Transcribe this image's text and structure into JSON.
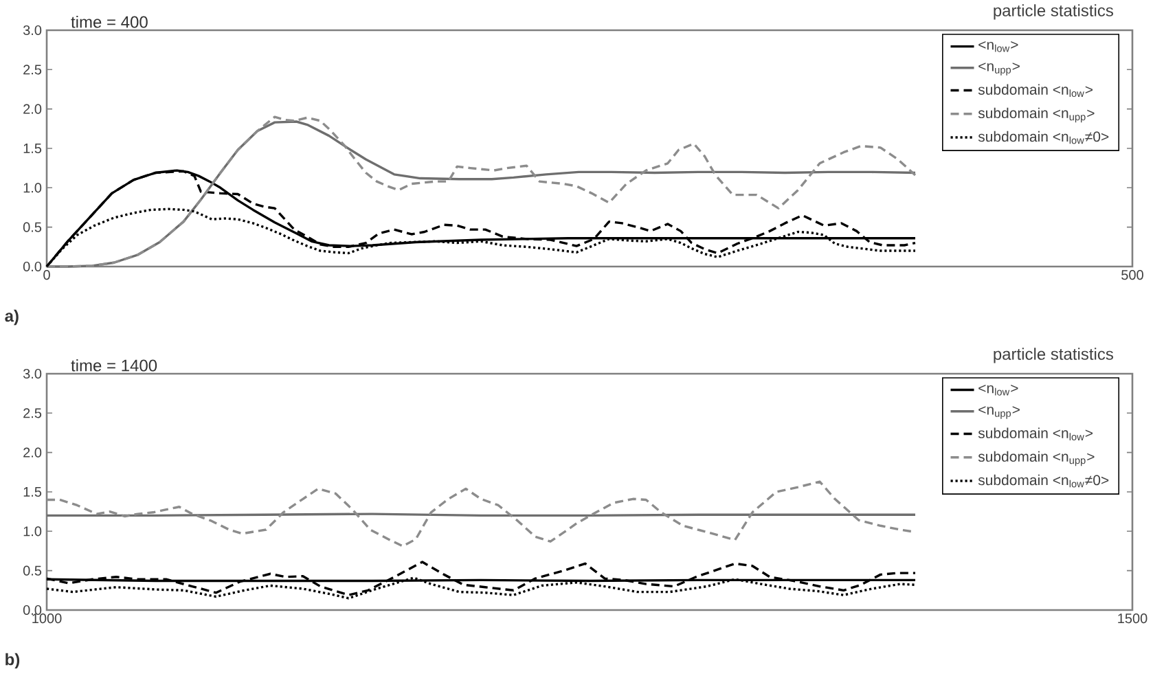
{
  "chart_data": [
    {
      "type": "line",
      "title": "particle statistics",
      "annotations": [
        "time = 400",
        "a)"
      ],
      "xlim": [
        0,
        500
      ],
      "xticks": [
        0,
        500
      ],
      "ylim": [
        0,
        3
      ],
      "yticks": [
        {
          "value": 0,
          "label": "0.0"
        },
        {
          "value": 0.5,
          "label": "0.5"
        },
        {
          "value": 1,
          "label": "1.0"
        },
        {
          "value": 1.5,
          "label": "1.5"
        },
        {
          "value": 2,
          "label": "2.0"
        },
        {
          "value": 2.5,
          "label": "2.5"
        },
        {
          "value": 3,
          "label": "3.0"
        }
      ],
      "legend": "top right",
      "series": [
        {
          "name": "<n$_{low}$>",
          "color": "#000000",
          "line_style": "solid",
          "x": [
            0,
            10,
            20,
            30,
            40,
            50,
            60,
            65,
            70,
            75,
            80,
            88,
            95,
            105,
            115,
            122,
            130,
            140,
            150,
            160,
            170,
            180,
            200,
            220,
            240,
            260,
            280,
            300,
            320,
            340,
            360,
            380,
            400
          ],
          "values": [
            0,
            0.33,
            0.63,
            0.93,
            1.1,
            1.19,
            1.22,
            1.2,
            1.15,
            1.08,
            1.0,
            0.84,
            0.72,
            0.56,
            0.42,
            0.32,
            0.27,
            0.26,
            0.27,
            0.29,
            0.31,
            0.32,
            0.34,
            0.35,
            0.36,
            0.36,
            0.36,
            0.36,
            0.36,
            0.36,
            0.36,
            0.36,
            0.36
          ]
        },
        {
          "name": "<n$_{upp}$>",
          "color": "#6e6e6e",
          "line_style": "solid",
          "x": [
            0,
            10,
            21,
            31,
            42,
            52,
            63,
            71,
            80,
            88,
            97,
            105,
            115,
            120,
            130,
            140,
            147,
            160,
            172,
            190,
            205,
            215,
            230,
            245,
            260,
            280,
            300,
            320,
            340,
            360,
            380,
            400
          ],
          "values": [
            0,
            0,
            0.01,
            0.05,
            0.15,
            0.31,
            0.57,
            0.85,
            1.19,
            1.48,
            1.72,
            1.83,
            1.84,
            1.8,
            1.66,
            1.48,
            1.36,
            1.17,
            1.12,
            1.11,
            1.11,
            1.13,
            1.17,
            1.2,
            1.2,
            1.19,
            1.2,
            1.2,
            1.19,
            1.2,
            1.2,
            1.19
          ]
        },
        {
          "name": "subdomain <n$_{low}$>",
          "color": "#000000",
          "line_style": "dashed",
          "x": [
            0,
            10,
            20,
            30,
            40,
            50,
            57,
            63,
            68,
            71,
            80,
            88,
            95,
            100,
            105,
            114,
            120,
            126,
            132,
            139,
            147,
            153,
            160,
            168,
            174,
            183,
            189,
            195,
            202,
            210,
            221,
            232,
            244,
            252,
            259,
            265,
            272,
            278,
            286,
            292,
            297,
            303,
            309,
            318,
            326,
            333,
            340,
            348,
            358,
            366,
            373,
            379,
            385,
            390,
            395,
            400
          ],
          "values": [
            0,
            0.33,
            0.63,
            0.93,
            1.1,
            1.19,
            1.2,
            1.21,
            1.15,
            0.95,
            0.93,
            0.92,
            0.8,
            0.76,
            0.74,
            0.47,
            0.38,
            0.28,
            0.25,
            0.25,
            0.3,
            0.42,
            0.47,
            0.41,
            0.44,
            0.53,
            0.52,
            0.47,
            0.47,
            0.38,
            0.35,
            0.34,
            0.26,
            0.35,
            0.57,
            0.55,
            0.5,
            0.45,
            0.54,
            0.45,
            0.3,
            0.22,
            0.17,
            0.29,
            0.37,
            0.45,
            0.55,
            0.65,
            0.52,
            0.55,
            0.45,
            0.31,
            0.27,
            0.27,
            0.27,
            0.3
          ]
        },
        {
          "name": "subdomain <n$_{upp}$>",
          "color": "#8c8c8c",
          "line_style": "dashed",
          "x": [
            0,
            10,
            21,
            31,
            42,
            52,
            63,
            71,
            80,
            88,
            97,
            105,
            110,
            114,
            120,
            126,
            131,
            137,
            142,
            147,
            152,
            157,
            162,
            168,
            179,
            185,
            189,
            195,
            206,
            212,
            221,
            227,
            238,
            244,
            251,
            259,
            267,
            276,
            286,
            291,
            298,
            303,
            308,
            316,
            327,
            337,
            346,
            356,
            367,
            375,
            384,
            392,
            400
          ],
          "values": [
            0,
            0,
            0.01,
            0.05,
            0.15,
            0.31,
            0.57,
            0.85,
            1.19,
            1.48,
            1.72,
            1.9,
            1.86,
            1.85,
            1.89,
            1.85,
            1.72,
            1.54,
            1.36,
            1.19,
            1.08,
            1.02,
            0.97,
            1.05,
            1.08,
            1.08,
            1.27,
            1.25,
            1.22,
            1.25,
            1.28,
            1.08,
            1.05,
            1.02,
            0.93,
            0.81,
            1.05,
            1.22,
            1.31,
            1.48,
            1.56,
            1.4,
            1.16,
            0.91,
            0.91,
            0.74,
            0.97,
            1.31,
            1.45,
            1.53,
            1.51,
            1.36,
            1.16
          ]
        },
        {
          "name": "subdomain <n$_{low}$≠0>",
          "color": "#000000",
          "line_style": "dotted",
          "x": [
            0,
            7,
            14,
            22,
            31,
            40,
            48,
            56,
            63,
            68,
            72,
            76,
            82,
            88,
            95,
            101,
            108,
            114,
            120,
            126,
            133,
            139,
            145,
            152,
            158,
            168,
            179,
            189,
            200,
            210,
            221,
            232,
            244,
            252,
            259,
            268,
            276,
            286,
            292,
            297,
            303,
            309,
            318,
            329,
            338,
            346,
            352,
            358,
            363,
            369,
            375,
            384,
            392,
            400
          ],
          "values": [
            0,
            0.22,
            0.4,
            0.52,
            0.62,
            0.68,
            0.72,
            0.73,
            0.72,
            0.7,
            0.65,
            0.6,
            0.61,
            0.6,
            0.55,
            0.49,
            0.41,
            0.33,
            0.26,
            0.2,
            0.18,
            0.17,
            0.23,
            0.27,
            0.3,
            0.31,
            0.32,
            0.3,
            0.32,
            0.27,
            0.25,
            0.22,
            0.18,
            0.27,
            0.35,
            0.33,
            0.32,
            0.35,
            0.3,
            0.23,
            0.16,
            0.12,
            0.2,
            0.29,
            0.37,
            0.44,
            0.43,
            0.4,
            0.29,
            0.25,
            0.23,
            0.2,
            0.2,
            0.2
          ]
        }
      ]
    },
    {
      "type": "line",
      "title": "particle statistics",
      "annotations": [
        "time = 1400",
        "b)"
      ],
      "xlim": [
        1000,
        1500
      ],
      "xticks": [
        1000,
        1500
      ],
      "ylim": [
        0,
        3
      ],
      "yticks": [
        {
          "value": 0,
          "label": "0.0"
        },
        {
          "value": 0.5,
          "label": "0.5"
        },
        {
          "value": 1,
          "label": "1.0"
        },
        {
          "value": 1.5,
          "label": "1.5"
        },
        {
          "value": 2,
          "label": "2.0"
        },
        {
          "value": 2.5,
          "label": "2.5"
        },
        {
          "value": 3,
          "label": "3.0"
        }
      ],
      "legend": "top right",
      "series": [
        {
          "name": "<n$_{low}$>",
          "color": "#000000",
          "line_style": "solid",
          "x": [
            1000,
            1050,
            1100,
            1150,
            1200,
            1250,
            1300,
            1350,
            1400
          ],
          "values": [
            0.39,
            0.37,
            0.37,
            0.37,
            0.38,
            0.37,
            0.38,
            0.38,
            0.38
          ]
        },
        {
          "name": "<n$_{upp}$>",
          "color": "#6e6e6e",
          "line_style": "solid",
          "x": [
            1000,
            1050,
            1100,
            1150,
            1200,
            1250,
            1300,
            1350,
            1400
          ],
          "values": [
            1.2,
            1.2,
            1.21,
            1.22,
            1.2,
            1.2,
            1.21,
            1.21,
            1.21
          ]
        },
        {
          "name": "subdomain <n$_{low}$>",
          "color": "#000000",
          "line_style": "dashed",
          "x": [
            1000,
            1010,
            1021,
            1032,
            1042,
            1055,
            1067,
            1078,
            1089,
            1103,
            1110,
            1118,
            1126,
            1139,
            1148,
            1158,
            1173,
            1183,
            1192,
            1202,
            1215,
            1225,
            1238,
            1248,
            1257,
            1266,
            1276,
            1289,
            1299,
            1317,
            1325,
            1333,
            1344,
            1356,
            1367,
            1375,
            1384,
            1392,
            1400
          ],
          "values": [
            0.4,
            0.34,
            0.39,
            0.42,
            0.39,
            0.39,
            0.3,
            0.22,
            0.36,
            0.46,
            0.42,
            0.43,
            0.3,
            0.19,
            0.25,
            0.39,
            0.61,
            0.45,
            0.32,
            0.29,
            0.25,
            0.4,
            0.5,
            0.59,
            0.4,
            0.38,
            0.33,
            0.3,
            0.42,
            0.59,
            0.56,
            0.42,
            0.37,
            0.3,
            0.25,
            0.32,
            0.45,
            0.47,
            0.47
          ]
        },
        {
          "name": "subdomain <n$_{upp}$>",
          "color": "#8c8c8c",
          "line_style": "dashed",
          "x": [
            1000,
            1006,
            1014,
            1023,
            1029,
            1036,
            1042,
            1049,
            1054,
            1061,
            1067,
            1076,
            1084,
            1090,
            1101,
            1109,
            1118,
            1125,
            1133,
            1141,
            1149,
            1158,
            1164,
            1170,
            1177,
            1185,
            1193,
            1200,
            1208,
            1217,
            1225,
            1232,
            1240,
            1244,
            1253,
            1261,
            1270,
            1276,
            1283,
            1293,
            1304,
            1317,
            1325,
            1336,
            1346,
            1356,
            1363,
            1374,
            1384,
            1393,
            1400
          ],
          "values": [
            1.4,
            1.4,
            1.33,
            1.22,
            1.25,
            1.19,
            1.22,
            1.24,
            1.27,
            1.31,
            1.22,
            1.13,
            1.02,
            0.97,
            1.02,
            1.24,
            1.41,
            1.54,
            1.48,
            1.27,
            1.02,
            0.89,
            0.81,
            0.9,
            1.24,
            1.41,
            1.54,
            1.41,
            1.33,
            1.13,
            0.93,
            0.87,
            1.02,
            1.1,
            1.24,
            1.36,
            1.41,
            1.4,
            1.24,
            1.07,
            0.99,
            0.89,
            1.24,
            1.5,
            1.56,
            1.63,
            1.41,
            1.14,
            1.07,
            1.02,
            0.99
          ]
        },
        {
          "name": "subdomain <n$_{low}$≠0>",
          "color": "#000000",
          "line_style": "dotted",
          "x": [
            1000,
            1012,
            1032,
            1051,
            1063,
            1078,
            1091,
            1103,
            1118,
            1131,
            1139,
            1152,
            1169,
            1177,
            1190,
            1202,
            1215,
            1228,
            1244,
            1257,
            1272,
            1287,
            1304,
            1317,
            1329,
            1342,
            1355,
            1367,
            1380,
            1393,
            1400
          ],
          "values": [
            0.27,
            0.23,
            0.29,
            0.26,
            0.25,
            0.17,
            0.25,
            0.31,
            0.27,
            0.2,
            0.15,
            0.27,
            0.41,
            0.33,
            0.23,
            0.22,
            0.19,
            0.31,
            0.35,
            0.3,
            0.23,
            0.23,
            0.3,
            0.39,
            0.33,
            0.27,
            0.24,
            0.19,
            0.27,
            0.33,
            0.32
          ]
        }
      ]
    }
  ]
}
